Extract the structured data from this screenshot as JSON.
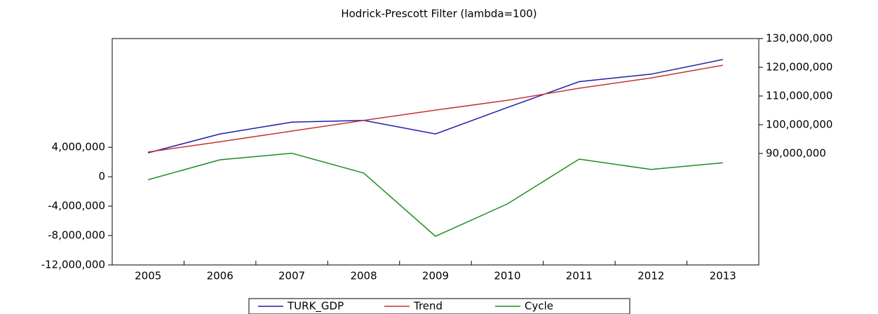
{
  "chart_data": {
    "type": "line",
    "title": "Hodrick-Prescott Filter (lambda=100)",
    "categories": [
      "2005",
      "2006",
      "2007",
      "2008",
      "2009",
      "2010",
      "2011",
      "2012",
      "2013"
    ],
    "series": [
      {
        "name": "TURK_GDP",
        "color": "#1f1fa8",
        "axis": "y2",
        "values": [
          90200000,
          96800000,
          100900000,
          101500000,
          96800000,
          106000000,
          115000000,
          117600000,
          122700000
        ]
      },
      {
        "name": "Trend",
        "color": "#c83232",
        "axis": "y2",
        "values": [
          90500000,
          94100000,
          97800000,
          101500000,
          105100000,
          108500000,
          112700000,
          116300000,
          120700000
        ]
      },
      {
        "name": "Cycle",
        "color": "#1e8c1e",
        "values": [
          -400000,
          2300000,
          3200000,
          500000,
          -8100000,
          -3700000,
          2400000,
          1000000,
          1900000
        ]
      }
    ],
    "ylim": [
      -12000000,
      18800000
    ],
    "yticks": [
      {
        "value": -12000000,
        "label": "-12,000,000"
      },
      {
        "value": -8000000,
        "label": "-8,000,000"
      },
      {
        "value": -4000000,
        "label": "-4,000,000"
      },
      0,
      {
        "value": 4000000,
        "label": "4,000,000"
      }
    ],
    "y2lim": [
      51200000,
      130000000
    ],
    "y2ticks": [
      {
        "value": 90000000,
        "label": "90,000,000"
      },
      {
        "value": 100000000,
        "label": "100,000,000"
      },
      {
        "value": 110000000,
        "label": "110,000,000"
      },
      {
        "value": 120000000,
        "label": "120,000,000"
      },
      {
        "value": 130000000,
        "label": "130,000,000"
      }
    ],
    "legend": "bottom"
  }
}
